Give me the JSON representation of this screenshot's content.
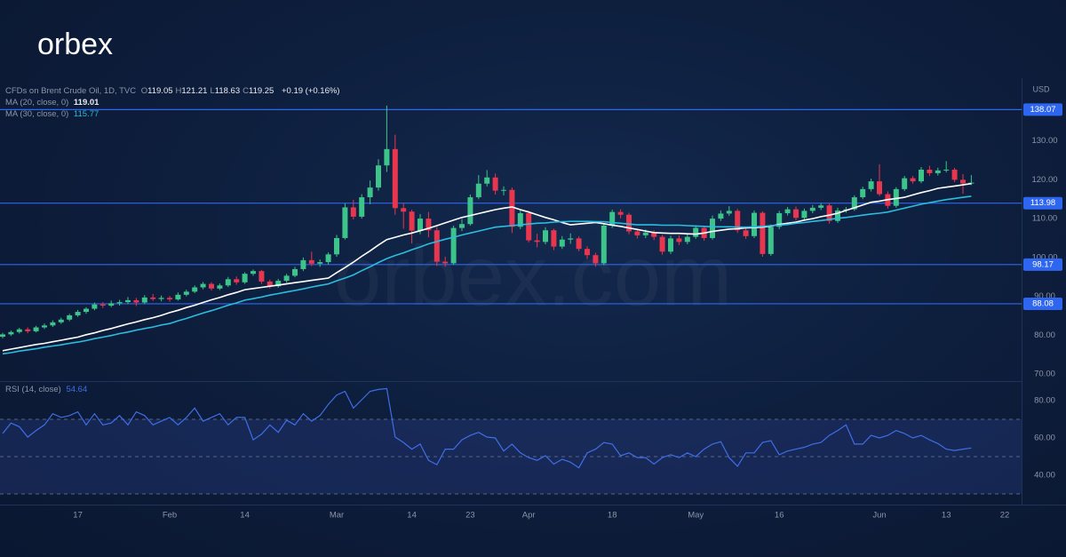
{
  "brand": "orbex",
  "watermark": "orbex.com",
  "chart_data": [
    {
      "type": "candlestick",
      "symbol": "CFDs on Brent Crude Oil, 1D, TVC",
      "quote": [
        {
          "label": "O",
          "value": 119.05
        },
        {
          "label": "H",
          "value": 121.21
        },
        {
          "label": "L",
          "value": 118.63
        },
        {
          "label": "C",
          "value": 119.25
        }
      ],
      "change": "+0.19 (+0.16%)",
      "currency": "USD",
      "up_color": "#3cc48a",
      "down_color": "#e8364f",
      "categories": [
        null,
        null,
        null,
        null,
        null,
        null,
        null,
        null,
        null,
        "17",
        null,
        null,
        null,
        null,
        null,
        null,
        null,
        null,
        null,
        null,
        "Feb",
        null,
        null,
        null,
        null,
        null,
        null,
        null,
        null,
        "14",
        null,
        null,
        null,
        null,
        null,
        null,
        null,
        null,
        null,
        null,
        "Mar",
        null,
        null,
        null,
        null,
        null,
        null,
        null,
        null,
        "14",
        null,
        null,
        null,
        null,
        null,
        null,
        "23",
        null,
        null,
        null,
        null,
        null,
        null,
        "Apr",
        null,
        null,
        null,
        null,
        null,
        null,
        null,
        null,
        null,
        "18",
        null,
        null,
        null,
        null,
        null,
        null,
        null,
        null,
        null,
        "May",
        null,
        null,
        null,
        null,
        null,
        null,
        null,
        null,
        null,
        "16",
        null,
        null,
        null,
        null,
        null,
        null,
        null,
        null,
        null,
        null,
        null,
        "Jun",
        null,
        null,
        null,
        null,
        null,
        null,
        null,
        "13",
        null,
        null,
        null,
        null,
        null,
        null,
        "22"
      ],
      "open": [
        79.6,
        80.2,
        80.8,
        81.5,
        81.0,
        82.0,
        82.5,
        83.3,
        84.0,
        85.1,
        86.0,
        86.8,
        87.9,
        87.6,
        88.2,
        88.5,
        89.0,
        88.4,
        89.7,
        89.3,
        89.6,
        89.2,
        90.4,
        91.2,
        92.3,
        93.2,
        92.0,
        92.8,
        94.4,
        93.6,
        95.8,
        96.5,
        93.8,
        92.6,
        94.0,
        95.3,
        97.0,
        99.3,
        98.4,
        98.8,
        100.8,
        105.0,
        112.9,
        110.5,
        115.5,
        118.0,
        123.7,
        127.9,
        112.7,
        111.8,
        106.9,
        110.0,
        107.0,
        98.9,
        98.5,
        107.6,
        108.6,
        115.5,
        119.0,
        120.6,
        117.2,
        117.4,
        107.9,
        111.4,
        104.4,
        104.0,
        107.0,
        102.8,
        104.6,
        104.9,
        102.2,
        100.6,
        98.5,
        108.2,
        111.7,
        111.0,
        106.7,
        105.7,
        106.4,
        105.3,
        101.5,
        104.9,
        104.0,
        105.3,
        107.6,
        105.0,
        110.0,
        111.3,
        112.0,
        107.0,
        105.5,
        111.5,
        100.9,
        107.9,
        111.4,
        112.4,
        110.2,
        112.0,
        112.8,
        113.4,
        109.4,
        112.1,
        112.4,
        115.5,
        117.6,
        119.6,
        116.3,
        113.3,
        117.6,
        120.4,
        119.6,
        122.6,
        121.7,
        122.4,
        122.6,
        120.0,
        119.05,
        null,
        null,
        null,
        null
      ],
      "high": [
        80.6,
        81.2,
        81.9,
        82.0,
        82.4,
        83.0,
        83.8,
        84.5,
        85.5,
        86.5,
        87.2,
        88.4,
        88.5,
        88.9,
        89.1,
        89.8,
        89.6,
        90.3,
        90.6,
        90.2,
        90.1,
        91.0,
        91.7,
        92.8,
        93.7,
        93.6,
        93.3,
        95.0,
        95.1,
        96.2,
        96.9,
        96.8,
        94.3,
        94.5,
        95.8,
        97.6,
        100.0,
        101.5,
        99.5,
        101.3,
        105.8,
        113.9,
        114.8,
        116.3,
        119.8,
        125.3,
        139.1,
        131.6,
        114.0,
        112.3,
        111.2,
        111.7,
        107.9,
        100.2,
        108.2,
        109.9,
        116.2,
        121.2,
        122.5,
        121.6,
        118.3,
        118.0,
        112.2,
        112.0,
        106.1,
        107.8,
        107.4,
        105.5,
        106.2,
        105.4,
        102.9,
        101.2,
        108.8,
        112.3,
        112.4,
        111.5,
        107.3,
        107.2,
        107.0,
        105.8,
        105.6,
        105.7,
        106.0,
        108.3,
        108.1,
        110.8,
        112.1,
        113.2,
        112.5,
        107.6,
        112.1,
        111.9,
        108.5,
        112.0,
        113.0,
        113.1,
        112.6,
        113.5,
        114.0,
        113.9,
        112.8,
        113.0,
        116.0,
        118.2,
        120.3,
        124.0,
        117.0,
        118.1,
        121.0,
        121.0,
        123.3,
        123.6,
        123.1,
        124.8,
        123.1,
        121.5,
        121.21,
        null,
        null,
        null,
        null
      ],
      "low": [
        79.2,
        79.8,
        80.4,
        80.5,
        80.7,
        81.6,
        82.1,
        82.9,
        83.6,
        84.7,
        85.5,
        86.4,
        87.0,
        87.2,
        87.6,
        88.0,
        87.5,
        88.0,
        88.8,
        88.7,
        88.6,
        88.9,
        90.0,
        90.8,
        91.8,
        91.5,
        91.6,
        92.4,
        93.0,
        93.2,
        95.3,
        93.2,
        92.0,
        92.2,
        93.5,
        94.9,
        96.5,
        97.8,
        97.6,
        98.2,
        100.2,
        104.6,
        109.8,
        110.0,
        113.7,
        117.2,
        122.0,
        111.0,
        107.4,
        103.6,
        106.0,
        105.2,
        97.8,
        97.6,
        98.1,
        106.8,
        108.2,
        115.0,
        118.3,
        116.2,
        116.0,
        106.3,
        107.3,
        103.9,
        102.6,
        103.4,
        101.9,
        102.2,
        103.5,
        101.6,
        99.6,
        97.6,
        98.0,
        107.6,
        110.1,
        106.0,
        104.9,
        105.0,
        104.5,
        100.7,
        100.9,
        103.2,
        103.4,
        104.8,
        104.3,
        104.6,
        109.4,
        110.7,
        106.3,
        104.8,
        105.0,
        100.2,
        100.4,
        107.3,
        110.8,
        109.5,
        109.7,
        111.4,
        112.2,
        108.7,
        108.9,
        111.5,
        112.0,
        115.0,
        117.0,
        115.8,
        112.6,
        112.8,
        117.1,
        119.0,
        119.1,
        121.0,
        121.1,
        121.9,
        119.4,
        116.4,
        118.63,
        null,
        null,
        null,
        null
      ],
      "close": [
        80.2,
        80.8,
        81.5,
        81.0,
        82.0,
        82.5,
        83.3,
        84.0,
        85.1,
        86.0,
        86.8,
        87.9,
        87.6,
        88.2,
        88.5,
        89.0,
        88.4,
        89.7,
        89.3,
        89.6,
        89.2,
        90.4,
        91.2,
        92.3,
        93.2,
        92.0,
        92.8,
        94.4,
        93.6,
        95.8,
        96.5,
        93.8,
        92.6,
        94.0,
        95.3,
        97.0,
        99.3,
        98.4,
        98.8,
        100.8,
        105.0,
        112.9,
        110.5,
        115.5,
        118.0,
        123.7,
        127.9,
        112.7,
        111.8,
        106.9,
        110.0,
        107.0,
        98.9,
        98.5,
        107.6,
        108.6,
        115.5,
        119.0,
        120.6,
        117.2,
        117.4,
        107.9,
        111.4,
        104.4,
        104.0,
        107.0,
        102.8,
        104.6,
        104.9,
        102.2,
        100.6,
        98.5,
        108.2,
        111.7,
        111.0,
        106.7,
        105.7,
        106.4,
        105.3,
        101.5,
        104.9,
        104.0,
        105.3,
        107.6,
        105.0,
        110.0,
        111.3,
        112.0,
        107.0,
        105.5,
        111.5,
        100.9,
        107.9,
        111.4,
        112.4,
        110.2,
        112.0,
        112.8,
        113.4,
        109.4,
        112.1,
        112.4,
        115.5,
        117.6,
        119.6,
        116.3,
        113.3,
        117.6,
        120.4,
        119.6,
        122.6,
        121.7,
        122.4,
        122.6,
        120.0,
        119.06,
        119.25,
        null,
        null,
        null,
        null
      ],
      "series": [
        {
          "name": "MA (20, close, 0)",
          "color": "#ffffff",
          "last_value": 119.01,
          "values": [
            76.0,
            76.4,
            76.8,
            77.2,
            77.6,
            77.9,
            78.3,
            78.7,
            79.1,
            79.5,
            80.1,
            80.6,
            81.2,
            81.7,
            82.3,
            82.9,
            83.4,
            84.0,
            84.5,
            85.1,
            85.8,
            86.4,
            87.1,
            87.7,
            88.4,
            89.1,
            89.7,
            90.4,
            91.0,
            91.7,
            92.0,
            92.3,
            92.6,
            92.9,
            93.2,
            93.5,
            93.8,
            94.1,
            94.4,
            94.7,
            96.1,
            97.4,
            98.8,
            100.3,
            101.7,
            103.2,
            104.6,
            105.2,
            105.8,
            106.3,
            106.9,
            107.5,
            108.2,
            108.9,
            109.6,
            110.3,
            110.8,
            111.3,
            111.8,
            112.3,
            112.7,
            113.0,
            112.3,
            111.7,
            111.0,
            110.3,
            109.7,
            109.0,
            108.4,
            108.6,
            108.8,
            109.0,
            108.7,
            108.3,
            108.0,
            107.6,
            107.2,
            106.8,
            106.4,
            106.3,
            106.2,
            106.2,
            106.1,
            106.0,
            106.3,
            106.7,
            107.0,
            107.3,
            107.4,
            107.6,
            107.7,
            107.8,
            108.1,
            108.5,
            108.8,
            109.1,
            109.6,
            110.0,
            110.5,
            110.9,
            111.4,
            112.1,
            112.8,
            113.5,
            114.2,
            114.5,
            114.9,
            115.2,
            115.5,
            116.1,
            116.7,
            117.2,
            117.8,
            118.1,
            118.4,
            118.7,
            119.01,
            null,
            null,
            null,
            null
          ]
        },
        {
          "name": "MA (30, close, 0)",
          "color": "#2bbde0",
          "last_value": 115.77,
          "values": [
            75.2,
            75.5,
            75.9,
            76.2,
            76.5,
            76.9,
            77.2,
            77.5,
            77.9,
            78.2,
            78.6,
            79.1,
            79.5,
            79.9,
            80.4,
            80.8,
            81.3,
            81.7,
            82.1,
            82.6,
            83.0,
            83.7,
            84.3,
            85.0,
            85.7,
            86.3,
            87.0,
            87.7,
            88.3,
            89.0,
            89.4,
            89.8,
            90.3,
            90.7,
            91.1,
            91.5,
            91.9,
            92.4,
            92.8,
            93.2,
            94.0,
            94.7,
            95.5,
            96.6,
            97.6,
            98.7,
            99.7,
            100.5,
            101.2,
            102.0,
            102.7,
            103.5,
            104.1,
            104.7,
            105.2,
            105.8,
            106.3,
            106.8,
            107.3,
            107.8,
            108.0,
            108.2,
            108.4,
            108.6,
            108.8,
            108.9,
            109.1,
            109.2,
            109.3,
            109.3,
            109.3,
            109.2,
            109.2,
            109.0,
            108.8,
            108.6,
            108.4,
            108.4,
            108.4,
            108.3,
            108.3,
            108.3,
            108.2,
            108.1,
            108.0,
            107.9,
            107.9,
            107.9,
            107.8,
            107.8,
            107.9,
            108.0,
            108.2,
            108.3,
            108.5,
            108.8,
            109.0,
            109.3,
            109.5,
            109.8,
            110.1,
            110.3,
            110.6,
            110.9,
            111.2,
            111.4,
            111.7,
            112.2,
            112.7,
            113.2,
            113.7,
            114.1,
            114.5,
            114.9,
            115.2,
            115.5,
            115.77,
            null,
            null,
            null,
            null
          ]
        }
      ],
      "levels": [
        138.07,
        113.98,
        98.17,
        88.08
      ],
      "level_color": "#2f66f0",
      "ylim": [
        68.4,
        145.7
      ],
      "yticks": [
        {
          "value": 70,
          "label": "70.00"
        },
        {
          "value": 80,
          "label": "80.00"
        },
        {
          "value": 90,
          "label": "90.00"
        },
        {
          "value": 100,
          "label": "100.00"
        },
        {
          "value": 110,
          "label": "110.00"
        },
        {
          "value": 120,
          "label": "120.00"
        },
        {
          "value": 130,
          "label": "130.00"
        }
      ],
      "grid": false
    },
    {
      "type": "line",
      "series": [
        {
          "name": "RSI (14, close)",
          "color": "#3e6ee6",
          "last_value": 54.64,
          "values": [
            62.4,
            68,
            66,
            60.5,
            64,
            67,
            73,
            71,
            72,
            74,
            67,
            73,
            67,
            68,
            72,
            67,
            74,
            72,
            67,
            69,
            71,
            67,
            71,
            76,
            69,
            71,
            73,
            67,
            71,
            71,
            59,
            62,
            67,
            63,
            69.5,
            67,
            73,
            69,
            72,
            78,
            83,
            85,
            76,
            80.5,
            85,
            86,
            86.5,
            60.5,
            57.6,
            54,
            56.7,
            48,
            45.7,
            54,
            54,
            59,
            61.4,
            63,
            60.5,
            60,
            53,
            56.7,
            52,
            49.5,
            48,
            50.5,
            46,
            48.6,
            47,
            44,
            52,
            54,
            57.6,
            56.7,
            50.5,
            52,
            49.5,
            49.5,
            46,
            49.5,
            51,
            49.5,
            52,
            50,
            54,
            56.7,
            58,
            49.5,
            44.8,
            52,
            52,
            57.6,
            58.6,
            51,
            53,
            54,
            55,
            56.7,
            57.6,
            61.4,
            64,
            67,
            56.7,
            56.7,
            61.4,
            60,
            61.4,
            64,
            62.4,
            60,
            61.4,
            59,
            57,
            54,
            53.3,
            54,
            54.64,
            null,
            null,
            null,
            null
          ]
        }
      ],
      "band": [
        30,
        70
      ],
      "band_color": "#2b3f8a",
      "midline": 50,
      "ylim": [
        24.3,
        90
      ],
      "yticks": [
        {
          "value": 40,
          "label": "40.00"
        },
        {
          "value": 60,
          "label": "60.00"
        },
        {
          "value": 80,
          "label": "80.00"
        }
      ],
      "grid": false
    }
  ]
}
